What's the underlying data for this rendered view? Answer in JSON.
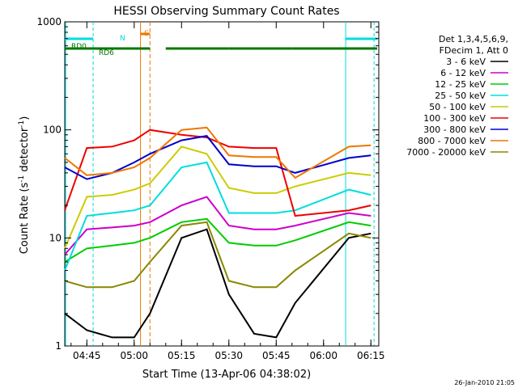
{
  "chart_data": {
    "type": "line",
    "title": "HESSI Observing Summary Count Rates",
    "xlabel": "Start Time (13-Apr-06 04:38:02)",
    "ylabel_main": "Count Rate (s",
    "ylabel_sup1": "-1",
    "ylabel_mid": " detector",
    "ylabel_sup2": "-1",
    "ylabel_end": ")",
    "yscale": "log",
    "ylim": [
      1,
      1000
    ],
    "xlim_minutes": [
      0,
      99.5
    ],
    "x_ticks": [
      {
        "label": "04:45",
        "minute": 7
      },
      {
        "label": "05:00",
        "minute": 22
      },
      {
        "label": "05:15",
        "minute": 37
      },
      {
        "label": "05:30",
        "minute": 52
      },
      {
        "label": "05:45",
        "minute": 67
      },
      {
        "label": "06:00",
        "minute": 82
      },
      {
        "label": "06:15",
        "minute": 97
      }
    ],
    "y_ticks": [
      {
        "label": "1",
        "value": 1
      },
      {
        "label": "10",
        "value": 10
      },
      {
        "label": "100",
        "value": 100
      },
      {
        "label": "1000",
        "value": 1000
      }
    ],
    "legend_header": [
      "Det 1,3,4,5,6,9,",
      "FDecim 1, Att 0"
    ],
    "series": [
      {
        "name": "3 - 6 keV",
        "color": "#000000",
        "values": [
          2,
          1.4,
          1.2,
          1.2,
          2,
          10,
          12,
          3,
          1.3,
          1.2,
          2.5,
          10,
          11
        ]
      },
      {
        "name": "6 - 12 keV",
        "color": "#cc00cc",
        "values": [
          7,
          12,
          12.5,
          13,
          14,
          20,
          24,
          13,
          12,
          12,
          13,
          17,
          16
        ]
      },
      {
        "name": "12 - 25 keV",
        "color": "#00cc00",
        "values": [
          6,
          8,
          8.5,
          9,
          10,
          14,
          15,
          9,
          8.5,
          8.5,
          9.5,
          14,
          13
        ]
      },
      {
        "name": "25 - 50 keV",
        "color": "#00dddd",
        "values": [
          5,
          16,
          17,
          18,
          20,
          45,
          50,
          17,
          17,
          17,
          18,
          28,
          25
        ]
      },
      {
        "name": "50 - 100 keV",
        "color": "#cccc00",
        "values": [
          8,
          24,
          25,
          28,
          32,
          70,
          60,
          29,
          26,
          26,
          30,
          40,
          38
        ]
      },
      {
        "name": "100 - 300 keV",
        "color": "#ee0000",
        "values": [
          18,
          68,
          70,
          80,
          100,
          90,
          85,
          70,
          68,
          68,
          16,
          18,
          20
        ]
      },
      {
        "name": "300 - 800 keV",
        "color": "#0000cc",
        "values": [
          45,
          35,
          40,
          50,
          60,
          80,
          88,
          48,
          46,
          46,
          40,
          55,
          58
        ]
      },
      {
        "name": "800 - 7000 keV",
        "color": "#ee7700",
        "values": [
          55,
          38,
          40,
          45,
          55,
          100,
          105,
          58,
          56,
          56,
          36,
          70,
          72
        ]
      },
      {
        "name": "7000 - 20000 keV",
        "color": "#888800",
        "values": [
          4,
          3.5,
          3.5,
          4,
          6,
          13,
          14,
          4,
          3.5,
          3.5,
          5,
          11,
          10
        ]
      }
    ],
    "series_minutes": [
      0,
      7,
      15,
      22,
      27,
      37,
      45,
      52,
      60,
      67,
      73,
      90,
      97
    ],
    "flags": [
      {
        "label": "RD0",
        "color": "#007700",
        "segments": [
          [
            0,
            27
          ],
          [
            32,
            52
          ],
          [
            52,
            72
          ],
          [
            72,
            99
          ]
        ]
      },
      {
        "label": "RD6",
        "color": "#007700",
        "segments": []
      },
      {
        "label": "N",
        "color": "#00dddd",
        "segments": [
          [
            0,
            9
          ],
          [
            89,
            99
          ]
        ]
      },
      {
        "label": "S",
        "color": "#ee7700",
        "segments": [
          [
            24,
            27
          ]
        ]
      }
    ],
    "legend_position": "right",
    "timestamp": "26-Jan-2010 21:05"
  }
}
